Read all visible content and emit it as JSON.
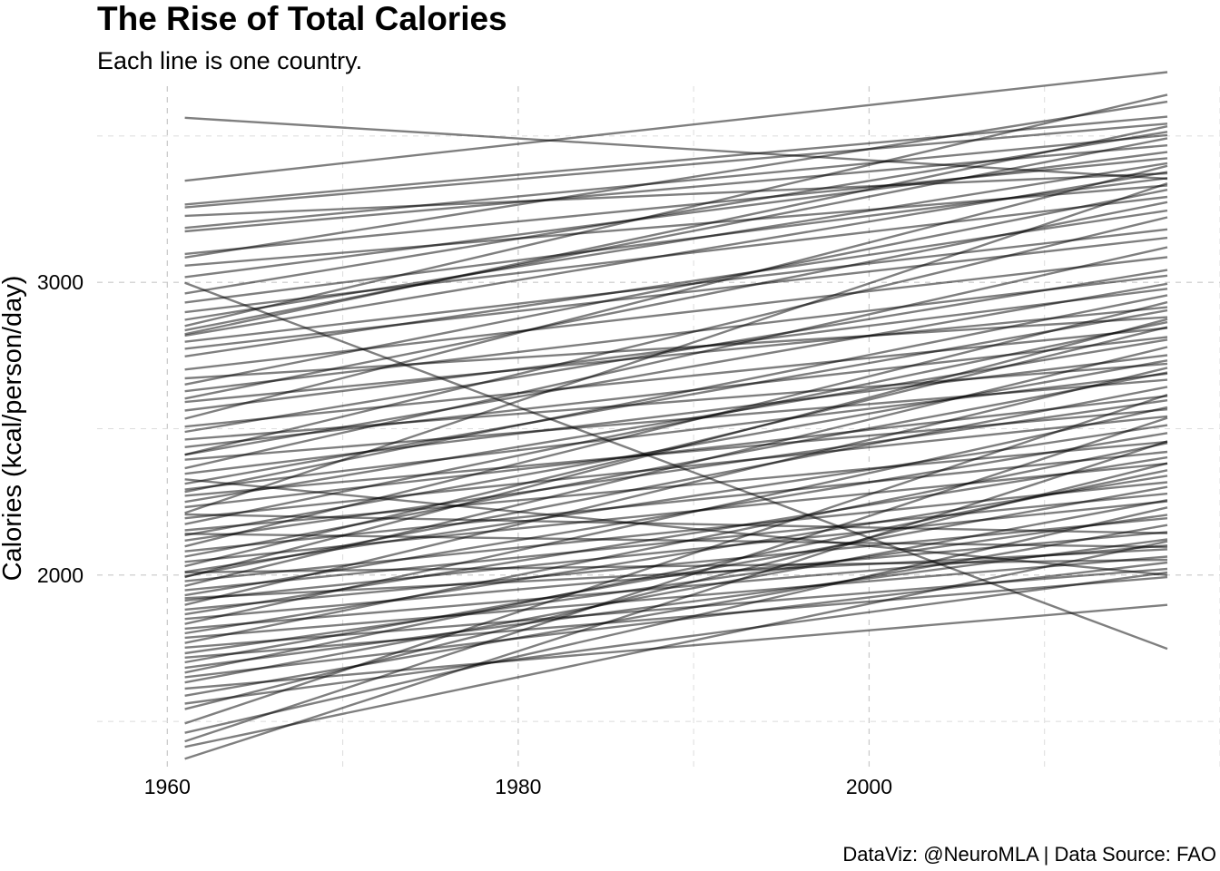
{
  "chart_data": {
    "type": "line",
    "title": "The Rise of Total Calories",
    "subtitle": "Each line is one country.",
    "caption": "DataViz: @NeuroMLA | Data Source: FAO",
    "xlabel": "",
    "ylabel": "Calories (kcal/person/day)",
    "xlim": [
      1956,
      2020
    ],
    "ylim": [
      1330,
      3670
    ],
    "x_ticks": [
      "1960",
      "1980",
      "2000"
    ],
    "y_ticks": [
      "2000",
      "3000"
    ],
    "grid": true,
    "line_color": "#000000",
    "x": [
      1961,
      2017
    ],
    "series": [
      {
        "values": [
          3562,
          3354
        ]
      },
      {
        "values": [
          3347,
          3718
        ]
      },
      {
        "values": [
          3266,
          3566
        ]
      },
      {
        "values": [
          3256,
          3542
        ]
      },
      {
        "values": [
          3227,
          3372
        ]
      },
      {
        "values": [
          3186,
          3503
        ]
      },
      {
        "values": [
          3174,
          3468
        ]
      },
      {
        "values": [
          3097,
          3424
        ]
      },
      {
        "values": [
          3085,
          3617
        ]
      },
      {
        "values": [
          3057,
          3331
        ]
      },
      {
        "values": [
          3018,
          3445
        ]
      },
      {
        "values": [
          2998,
          1748
        ]
      },
      {
        "values": [
          2962,
          3514
        ]
      },
      {
        "values": [
          2931,
          3356
        ]
      },
      {
        "values": [
          2898,
          3292
        ]
      },
      {
        "values": [
          2872,
          3407
        ]
      },
      {
        "values": [
          2851,
          3641
        ]
      },
      {
        "values": [
          2836,
          3492
        ]
      },
      {
        "values": [
          2818,
          3377
        ]
      },
      {
        "values": [
          2797,
          3181
        ]
      },
      {
        "values": [
          2773,
          3152
        ]
      },
      {
        "values": [
          2747,
          3245
        ]
      },
      {
        "values": [
          2702,
          3086
        ]
      },
      {
        "values": [
          2672,
          2881
        ]
      },
      {
        "values": [
          2651,
          3316
        ]
      },
      {
        "values": [
          2628,
          3023
        ]
      },
      {
        "values": [
          2591,
          2915
        ]
      },
      {
        "values": [
          2562,
          2978
        ]
      },
      {
        "values": [
          2534,
          3398
        ]
      },
      {
        "values": [
          2507,
          2844
        ]
      },
      {
        "values": [
          2489,
          3042
        ]
      },
      {
        "values": [
          2463,
          2722
        ]
      },
      {
        "values": [
          2437,
          2813
        ]
      },
      {
        "values": [
          2411,
          2995
        ]
      },
      {
        "values": [
          2394,
          2667
        ]
      },
      {
        "values": [
          2365,
          3120
        ]
      },
      {
        "values": [
          2346,
          2751
        ]
      },
      {
        "values": [
          2312,
          2904
        ]
      },
      {
        "values": [
          2292,
          2688
        ]
      },
      {
        "values": [
          2271,
          2566
        ]
      },
      {
        "values": [
          2250,
          2804
        ]
      },
      {
        "values": [
          2232,
          2612
        ]
      },
      {
        "values": [
          2212,
          3338
        ]
      },
      {
        "values": [
          2194,
          2542
        ]
      },
      {
        "values": [
          2174,
          2864
        ]
      },
      {
        "values": [
          2153,
          2455
        ]
      },
      {
        "values": [
          2136,
          2733
        ]
      },
      {
        "values": [
          2118,
          2597
        ]
      },
      {
        "values": [
          2098,
          2932
        ]
      },
      {
        "values": [
          2081,
          2421
        ]
      },
      {
        "values": [
          2063,
          2692
        ]
      },
      {
        "values": [
          2045,
          2381
        ]
      },
      {
        "values": [
          2030,
          2847
        ]
      },
      {
        "values": [
          2011,
          2512
        ]
      },
      {
        "values": [
          1995,
          2643
        ]
      },
      {
        "values": [
          1979,
          2317
        ]
      },
      {
        "values": [
          1963,
          2779
        ]
      },
      {
        "values": [
          1948,
          2278
        ]
      },
      {
        "values": [
          1931,
          2485
        ]
      },
      {
        "values": [
          1913,
          2252
        ]
      },
      {
        "values": [
          1898,
          2708
        ]
      },
      {
        "values": [
          1882,
          2194
        ]
      },
      {
        "values": [
          1866,
          2402
        ]
      },
      {
        "values": [
          1850,
          2147
        ]
      },
      {
        "values": [
          1833,
          2573
        ]
      },
      {
        "values": [
          1817,
          2101
        ]
      },
      {
        "values": [
          1801,
          2339
        ]
      },
      {
        "values": [
          1786,
          2063
        ]
      },
      {
        "values": [
          1768,
          2451
        ]
      },
      {
        "values": [
          1752,
          2021
        ]
      },
      {
        "values": [
          1733,
          2206
        ]
      },
      {
        "values": [
          1718,
          1993
        ]
      },
      {
        "values": [
          1702,
          2301
        ]
      },
      {
        "values": [
          1683,
          2122
        ]
      },
      {
        "values": [
          1667,
          2358
        ]
      },
      {
        "values": [
          1651,
          2043
        ]
      },
      {
        "values": [
          1633,
          2256
        ]
      },
      {
        "values": [
          1612,
          1898
        ]
      },
      {
        "values": [
          1588,
          2171
        ]
      },
      {
        "values": [
          1561,
          2009
        ]
      },
      {
        "values": [
          1542,
          2382
        ]
      },
      {
        "values": [
          1493,
          2616
        ]
      },
      {
        "values": [
          1461,
          2231
        ]
      },
      {
        "values": [
          1432,
          2537
        ]
      },
      {
        "values": [
          1413,
          2115
        ]
      },
      {
        "values": [
          1372,
          2457
        ]
      },
      {
        "values": [
          2141,
          2096
        ]
      },
      {
        "values": [
          2009,
          2052
        ]
      },
      {
        "values": [
          2207,
          2143
        ]
      },
      {
        "values": [
          2327,
          2000
        ]
      },
      {
        "values": [
          1921,
          2088
        ]
      },
      {
        "values": [
          2603,
          3274
        ]
      },
      {
        "values": [
          2823,
          3533
        ]
      },
      {
        "values": [
          2411,
          3222
        ]
      },
      {
        "values": [
          1993,
          2874
        ]
      },
      {
        "values": [
          2284,
          2956
        ]
      }
    ]
  }
}
